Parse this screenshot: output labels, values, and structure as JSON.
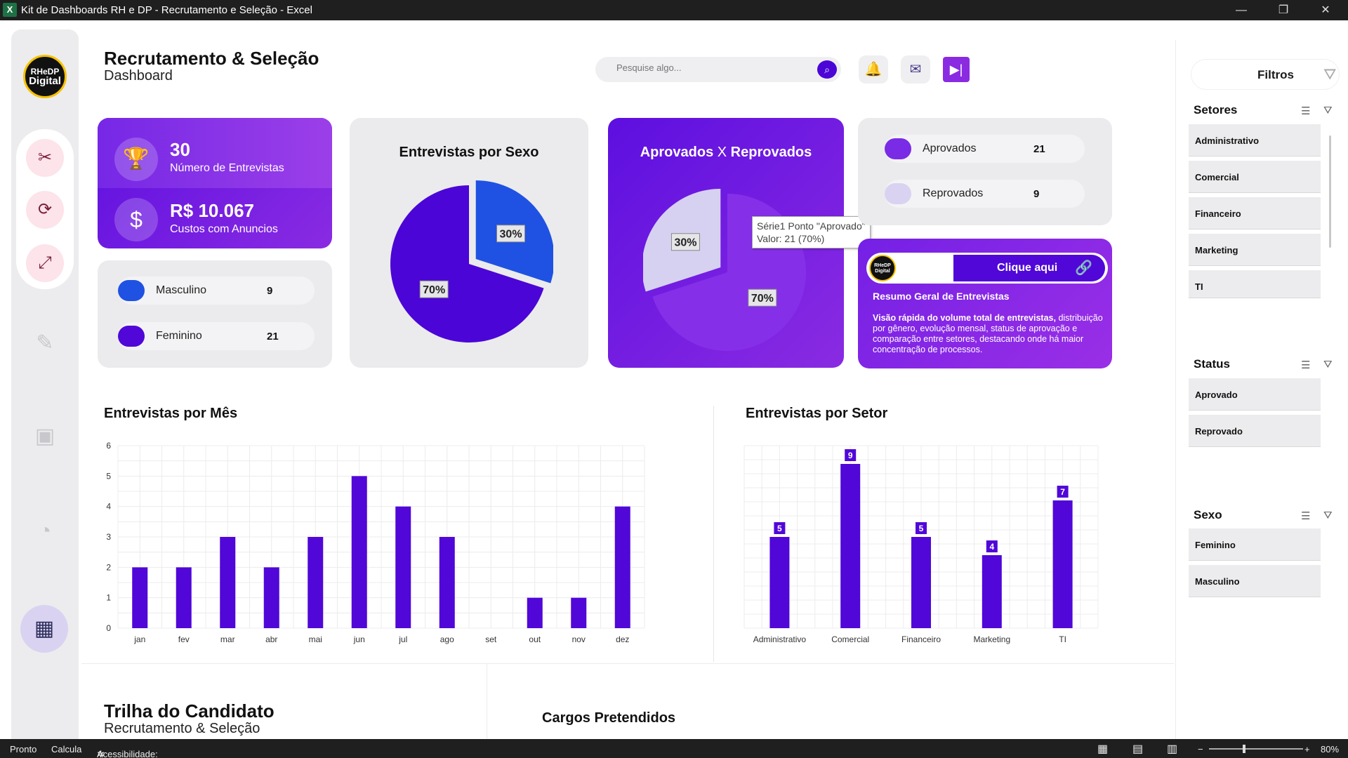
{
  "window": {
    "title": "Kit de Dashboards RH e DP - Recrutamento e Seleção - Excel"
  },
  "header": {
    "title": "Recrutamento & Seleção",
    "subtitle": "Dashboard",
    "search_placeholder": "Pesquise algo..."
  },
  "logo": {
    "line1": "RHeDP",
    "line2": "Digital"
  },
  "kpis": {
    "entrevistas_value": "30",
    "entrevistas_label": "Número de Entrevistas",
    "custos_value": "R$ 10.067",
    "custos_label": "Custos com Anuncios"
  },
  "sexo_legend": [
    {
      "label": "Masculino",
      "value": "9",
      "color": "#1f52e3"
    },
    {
      "label": "Feminino",
      "value": "21",
      "color": "#5007d8"
    }
  ],
  "sexo_chart": {
    "title": "Entrevistas por Sexo",
    "slices": [
      {
        "name": "Masculino",
        "value": 9,
        "label": "30%",
        "color": "#1f52e3"
      },
      {
        "name": "Feminino",
        "value": 21,
        "label": "70%",
        "color": "#4b05d6"
      }
    ]
  },
  "aprov_chart": {
    "title_a": "Aprovados",
    "title_x": "X",
    "title_b": "Reprovados",
    "slices": [
      {
        "name": "Aprovado",
        "value": 21,
        "label": "70%",
        "color": "#8530e8"
      },
      {
        "name": "Reprovado",
        "value": 9,
        "label": "30%",
        "color": "#d6d1f0"
      }
    ],
    "tooltip_line1": "Série1 Ponto \"Aprovado\"",
    "tooltip_line2": "Valor: 21 (70%)"
  },
  "aprov_legend": [
    {
      "label": "Aprovados",
      "value": "21",
      "color": "#7a2be6"
    },
    {
      "label": "Reprovados",
      "value": "9",
      "color": "#d9d3f1"
    }
  ],
  "resumo": {
    "button": "Clique aqui",
    "title": "Resumo Geral de Entrevistas",
    "text_bold": "Visão rápida do volume total de entrevistas,",
    "text_rest": "distribuição por gênero, evolução mensal, status de aprovação e comparação entre setores, destacando onde há maior concentração de processos."
  },
  "chart_data": [
    {
      "type": "bar",
      "title": "Entrevistas por Mês",
      "categories": [
        "jan",
        "fev",
        "mar",
        "abr",
        "mai",
        "jun",
        "jul",
        "ago",
        "set",
        "out",
        "nov",
        "dez"
      ],
      "values": [
        2,
        2,
        3,
        2,
        3,
        5,
        4,
        3,
        0,
        1,
        1,
        4
      ],
      "ylim": [
        0,
        6
      ],
      "yticks": [
        0,
        1,
        2,
        3,
        4,
        5,
        6
      ],
      "grid": true
    },
    {
      "type": "bar",
      "title": "Entrevistas por Setor",
      "categories": [
        "Administrativo",
        "Comercial",
        "Financeiro",
        "Marketing",
        "TI"
      ],
      "values": [
        5,
        9,
        5,
        4,
        7
      ],
      "data_labels": [
        "5",
        "9",
        "5",
        "4",
        "7"
      ],
      "ylim": [
        0,
        10
      ],
      "grid": true
    }
  ],
  "bottom": {
    "trilha_title": "Trilha do Candidato",
    "trilha_subtitle": "Recrutamento & Seleção",
    "cargos_title": "Cargos Pretendidos"
  },
  "filters": {
    "title": "Filtros",
    "setores_title": "Setores",
    "setores": [
      "Administrativo",
      "Comercial",
      "Financeiro",
      "Marketing",
      "TI"
    ],
    "status_title": "Status",
    "status": [
      "Aprovado",
      "Reprovado"
    ],
    "sexo_title": "Sexo",
    "sexo": [
      "Feminino",
      "Masculino"
    ]
  },
  "statusbar": {
    "ready": "Pronto",
    "calc": "Calcula",
    "access": "Acessibilidade: investigar",
    "zoom": "80%"
  },
  "colors": {
    "accent": "#4b05d6",
    "bar": "#5007d8"
  }
}
